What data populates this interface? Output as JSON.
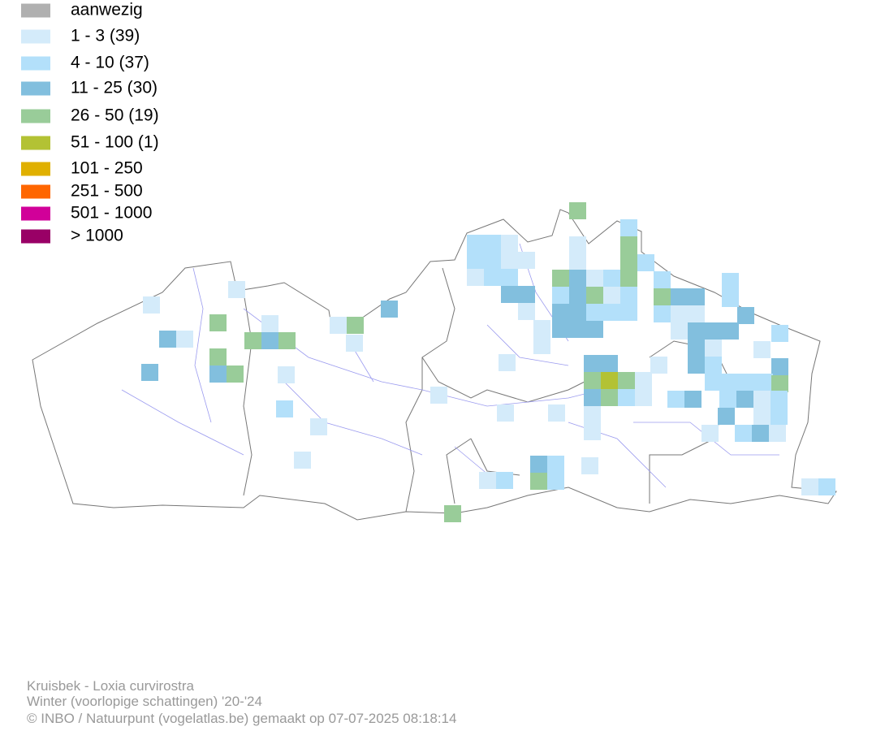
{
  "legend": {
    "items": [
      {
        "label": "aanwezig",
        "color": "#b0b0b0"
      },
      {
        "label": "1 - 3 (39)",
        "color": "#d4ebfa"
      },
      {
        "label": "4 - 10 (37)",
        "color": "#b3e0fa"
      },
      {
        "label": "11 - 25 (30)",
        "color": "#82bfde"
      },
      {
        "label": "26 - 50 (19)",
        "color": "#99cc99"
      },
      {
        "label": "51 - 100 (1)",
        "color": "#b3c234"
      },
      {
        "label": "101 - 250",
        "color": "#e0b000"
      },
      {
        "label": "251 - 500",
        "color": "#ff6600"
      },
      {
        "label": "501 - 1000",
        "color": "#d10099"
      },
      {
        "label": "> 1000",
        "color": "#990066"
      }
    ]
  },
  "footer": {
    "lines": [
      "Kruisbek - Loxia curvirostra",
      "Winter (voorlopige schattingen) '20-'24",
      "© INBO / Natuurpunt (vogelatlas.be) gemaakt op 07-07-2025 08:18:14"
    ]
  }
}
